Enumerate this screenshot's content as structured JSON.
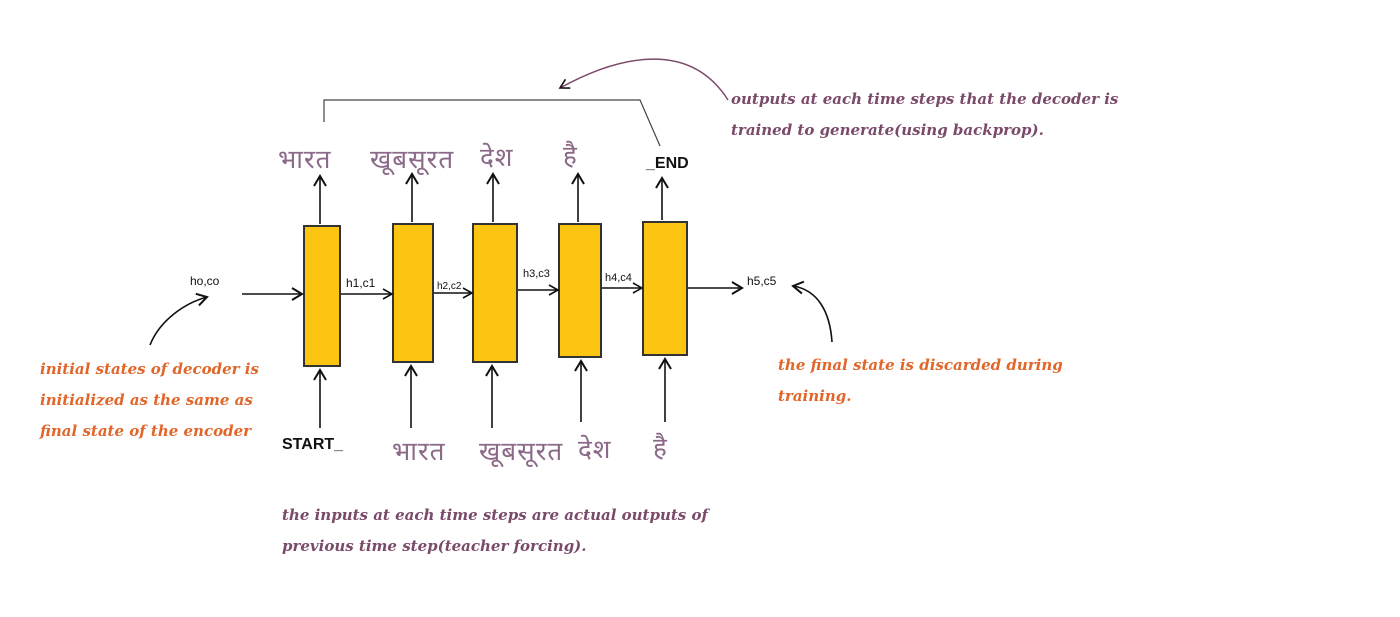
{
  "colors": {
    "cell_fill": "#fbc512",
    "cell_stroke": "#333333",
    "arrow": "#111111",
    "annotation_orange": "#e0662a",
    "annotation_purple": "#7a4a6a",
    "hindi_text": "#8a6a88"
  },
  "initial_state": "ho,co",
  "final_state": "h5,c5",
  "hidden_states": [
    "h1,c1",
    "h2,c2",
    "h3,c3",
    "h4,c4"
  ],
  "outputs": [
    "भारत",
    "खूबसूरत",
    "देश",
    "है",
    "_END"
  ],
  "inputs": [
    "START_",
    "भारत",
    "खूबसूरत",
    "देश",
    "है"
  ],
  "annotations": {
    "left": [
      "initial states of decoder is",
      "initialized as the same as",
      "final state of the encoder"
    ],
    "right": [
      "the final state is discarded during",
      "training."
    ],
    "top": [
      "outputs at each time steps that the decoder is",
      "trained to generate(using backprop)."
    ],
    "bottom": [
      "the inputs at each time steps are actual outputs of",
      "previous time step(teacher forcing)."
    ]
  }
}
